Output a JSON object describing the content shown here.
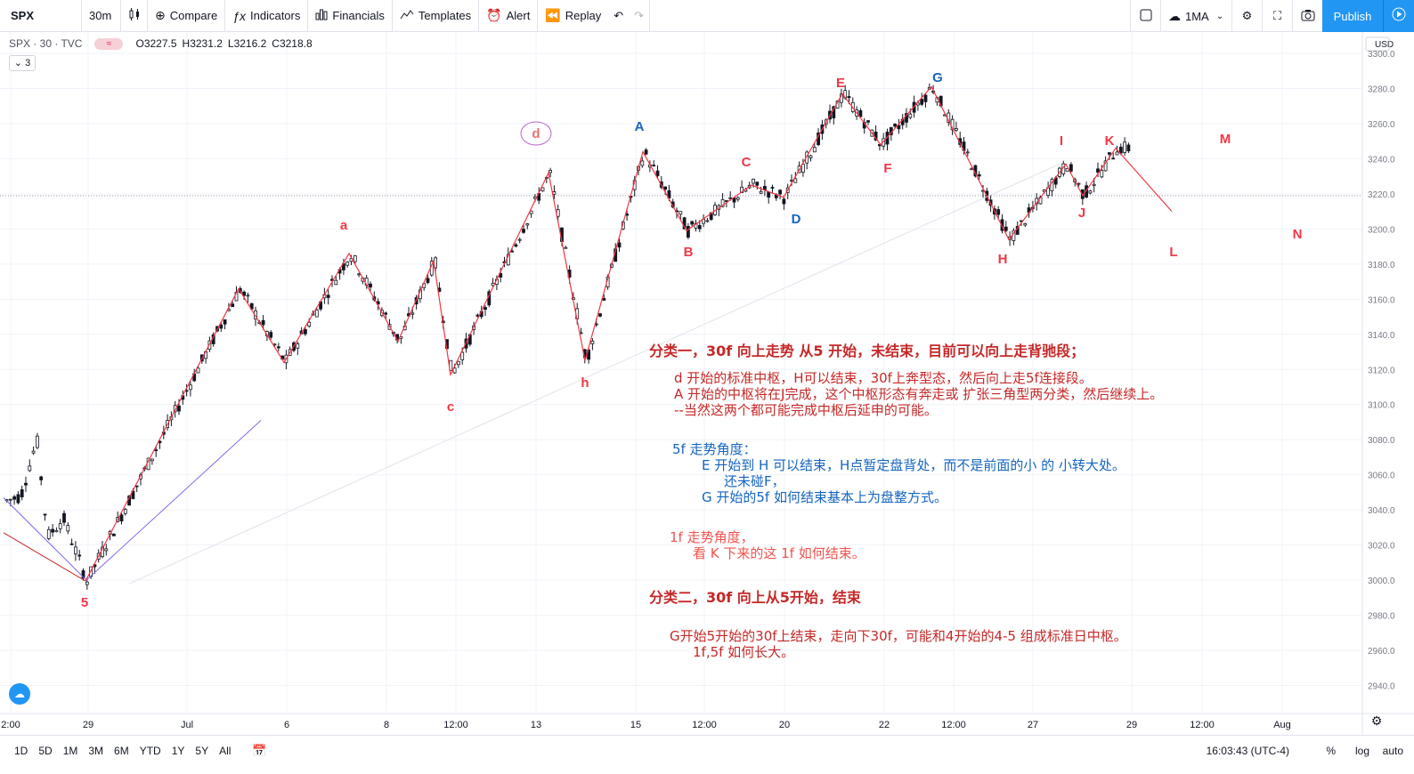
{
  "toolbar": {
    "symbol": "SPX",
    "interval": "30m",
    "compare": "Compare",
    "indicators": "Indicators",
    "financials": "Financials",
    "templates": "Templates",
    "alert": "Alert",
    "replay": "Replay",
    "ma": "1MA",
    "publish": "Publish"
  },
  "legend": {
    "symbol_line": "SPX · 30 · TVC",
    "open": "O3227.5",
    "high": "H3231.2",
    "low": "L3216.2",
    "close": "C3218.8",
    "collapsed_count": "3"
  },
  "bottom": {
    "ranges": [
      "1D",
      "5D",
      "1M",
      "3M",
      "6M",
      "YTD",
      "1Y",
      "5Y",
      "All"
    ],
    "clock": "16:03:43 (UTC-4)",
    "percent": "%",
    "log": "log",
    "auto": "auto"
  },
  "chart_data": {
    "type": "line",
    "currency": "USD",
    "y_ticks": [
      3300,
      3280,
      3260,
      3240,
      3220,
      3200,
      3180,
      3160,
      3140,
      3120,
      3100,
      3080,
      3060,
      3040,
      3020,
      3000,
      2980,
      2960,
      2940
    ],
    "ylim": [
      2930,
      3305
    ],
    "x_ticks": [
      "2:00",
      "29",
      "Jul",
      "6",
      "8",
      "12:00",
      "13",
      "15",
      "12:00",
      "20",
      "22",
      "12:00",
      "27",
      "29",
      "12:00",
      "Aug"
    ],
    "price_line": 3219,
    "colors": {
      "wave": "#f23645",
      "candle": "#131722",
      "blue_line": "#7b68ee",
      "trend_line": "#d1d4dc"
    },
    "wave_path": [
      {
        "label": "5",
        "y": 2999.5
      },
      {
        "y": 3166
      },
      {
        "y": 3124
      },
      {
        "label": "a",
        "y": 3186
      },
      {
        "y": 3136
      },
      {
        "y": 3182
      },
      {
        "label": "c",
        "y": 3117
      },
      {
        "label": "d",
        "y": 3232
      },
      {
        "label": "h",
        "y": 3125
      },
      {
        "label": "A",
        "y": 3244
      },
      {
        "label": "B",
        "y": 3199
      },
      {
        "label": "C",
        "y": 3225
      },
      {
        "label": "D",
        "y": 3218
      },
      {
        "label": "E",
        "y": 3277
      },
      {
        "label": "F",
        "y": 3248
      },
      {
        "label": "G",
        "y": 3281
      },
      {
        "label": "H",
        "y": 3194
      },
      {
        "label": "I",
        "y": 3237
      },
      {
        "label": "J",
        "y": 3219
      },
      {
        "label": "K",
        "y": 3246
      },
      {
        "label": "L",
        "y": 3210
      }
    ],
    "labels_extra": [
      "M",
      "N"
    ],
    "annotations": [
      {
        "text": "分类一，30f 向上走势 从5 开始，未结束，目前可以向上走背驰段；",
        "color": "#c62828",
        "bold": true
      },
      {
        "text": "d 开始的标准中枢，H可以结束，30f上奔型态，然后向上走5f连接段。",
        "color": "#c62828"
      },
      {
        "text": "A 开始的中枢将在J完成，这个中枢形态有奔走或 扩张三角型两分类，然后继续上。",
        "color": "#c62828"
      },
      {
        "text": "--当然这两个都可能完成中枢后延申的可能。",
        "color": "#c62828"
      },
      {
        "text": "5f 走势角度：",
        "color": "#1565c0"
      },
      {
        "text": "E 开始到 H 可以结束，H点暂定盘背处，而不是前面的小 的 小转大处。",
        "color": "#1565c0"
      },
      {
        "text": "还未碰F，",
        "color": "#1565c0"
      },
      {
        "text": "G 开始的5f 如何结束基本上为盘整方式。",
        "color": "#1565c0"
      },
      {
        "text": "1f 走势角度，",
        "color": "#ef5350"
      },
      {
        "text": "看 K 下来的这 1f 如何结束。",
        "color": "#ef5350"
      },
      {
        "text": "分类二，30f 向上从5开始，结束",
        "color": "#c62828",
        "bold": true
      },
      {
        "text": "G开始5开始的30f上结束，走向下30f，可能和4开始的4-5 组成标准日中枢。",
        "color": "#c62828"
      },
      {
        "text": "1f,5f 如何长大。",
        "color": "#c62828"
      }
    ]
  }
}
